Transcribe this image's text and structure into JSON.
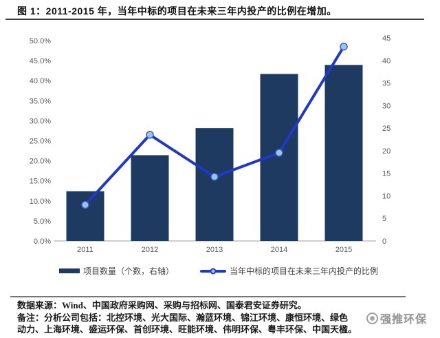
{
  "title": {
    "text": "图 1：2011-2015 年，当年中标的项目在未来三年内投产的比例在增加。"
  },
  "chart_data": {
    "type": "combo",
    "categories": [
      "2011",
      "2012",
      "2013",
      "2014",
      "2015"
    ],
    "series": [
      {
        "name": "项目数量（个数，右轴）",
        "type": "bar",
        "axis": "right",
        "values": [
          11,
          19,
          25,
          37,
          39
        ],
        "color": "#1F3A60"
      },
      {
        "name": "当年中标的项目在未来三年内投产的比例",
        "type": "line",
        "axis": "left",
        "values": [
          9,
          26.5,
          16,
          22,
          48.5
        ],
        "color": "#2038C8",
        "marker_fill": "#9DC3E6",
        "marker_stroke": "#3A5FC8"
      }
    ],
    "left_axis": {
      "min": 0,
      "max": 50,
      "step": 5,
      "tick_labels": [
        "50.0%",
        "45.0%",
        "40.0%",
        "35.0%",
        "30.0%",
        "25.0%",
        "20.0%",
        "15.0%",
        "10.0%",
        "5.0%",
        "0.0%"
      ]
    },
    "right_axis": {
      "min": 0,
      "max": 45,
      "step": 5,
      "tick_labels": [
        "45",
        "40",
        "35",
        "30",
        "25",
        "20",
        "15",
        "10",
        "5",
        "0"
      ]
    },
    "grid": false,
    "legend_position": "bottom",
    "xlabel": "",
    "ylabel": ""
  },
  "legend": {
    "items": [
      {
        "label": "项目数量（个数，右轴）",
        "swatch": "bar"
      },
      {
        "label": "当年中标的项目在未来三年内投产的比例",
        "swatch": "line-marker"
      }
    ]
  },
  "footer": {
    "source": "数据来源：Wind、中国政府采购网、采购与招标网、国泰君安证券研究。",
    "note_line1": "备注：分析公司包括：北控环境、光大国际、瀚蓝环境、锦江环境、康恒环境、绿色",
    "note_line2": "动力、上海环境、盛运环保、首创环境、旺能环境、伟明环保、粤丰环保、中国天楹。"
  },
  "watermark": {
    "text": "强推环保"
  },
  "colors": {
    "bar": "#1F3A60",
    "line": "#2038C8",
    "marker_fill": "#9DC3E6",
    "marker_stroke": "#3A5FC8",
    "axis_line": "#BFBFBF",
    "tick_text": "#595959",
    "title_text": "#111111",
    "background": "#FFFFFF"
  }
}
